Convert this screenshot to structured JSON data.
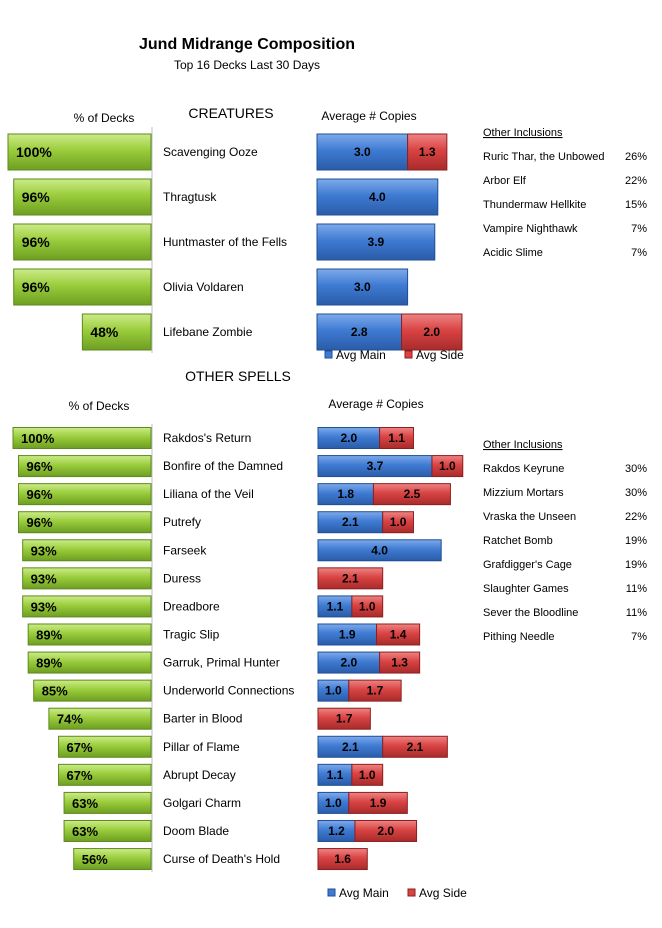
{
  "title": "Jund Midrange Composition",
  "subtitle": "Top 16 Decks Last 30 Days",
  "colors": {
    "pct_fill": "#9ACD3C",
    "pct_border": "#5E8A1E",
    "main_fill": "#3F7BD3",
    "main_border": "#1F4F97",
    "side_fill": "#D94343",
    "side_border": "#8E1F1F"
  },
  "chart_data": [
    {
      "type": "bar",
      "section_title": "CREATURES",
      "pct_header": "% of Decks",
      "copies_header": "Average # Copies",
      "categories": [
        "Scavenging Ooze",
        "Thragtusk",
        "Huntmaster of the Fells",
        "Olivia Voldaren",
        "Lifebane Zombie"
      ],
      "pct_labels": [
        "100%",
        "96%",
        "96%",
        "96%",
        "48%"
      ],
      "pct_values": [
        100,
        96,
        96,
        96,
        48
      ],
      "series": [
        {
          "name": "Avg Main",
          "values": [
            3.0,
            4.0,
            3.9,
            3.0,
            2.8
          ],
          "labels": [
            "3.0",
            "4.0",
            "3.9",
            "3.0",
            "2.8"
          ]
        },
        {
          "name": "Avg Side",
          "values": [
            1.3,
            0,
            0,
            0,
            2.0
          ],
          "labels": [
            "1.3",
            "",
            "",
            "",
            "2.0"
          ]
        }
      ],
      "legend": [
        "Avg Main",
        "Avg Side"
      ],
      "other_title": "Other Inclusions",
      "other": [
        {
          "name": "Ruric Thar, the Unbowed",
          "pct": "26%"
        },
        {
          "name": "Arbor Elf",
          "pct": "22%"
        },
        {
          "name": "Thundermaw Hellkite",
          "pct": "15%"
        },
        {
          "name": "Vampire Nighthawk",
          "pct": "7%"
        },
        {
          "name": "Acidic Slime",
          "pct": "7%"
        }
      ]
    },
    {
      "type": "bar",
      "section_title": "OTHER SPELLS",
      "pct_header": "% of Decks",
      "copies_header": "Average # Copies",
      "categories": [
        "Rakdos's Return",
        "Bonfire of the Damned",
        "Liliana of the Veil",
        "Putrefy",
        "Farseek",
        "Duress",
        "Dreadbore",
        "Tragic Slip",
        "Garruk, Primal Hunter",
        "Underworld Connections",
        "Barter in Blood",
        "Pillar of Flame",
        "Abrupt Decay",
        "Golgari Charm",
        "Doom Blade",
        "Curse of Death's Hold"
      ],
      "pct_labels": [
        "100%",
        "96%",
        "96%",
        "96%",
        "93%",
        "93%",
        "93%",
        "89%",
        "89%",
        "85%",
        "74%",
        "67%",
        "67%",
        "63%",
        "63%",
        "56%"
      ],
      "pct_values": [
        100,
        96,
        96,
        96,
        93,
        93,
        93,
        89,
        89,
        85,
        74,
        67,
        67,
        63,
        63,
        56
      ],
      "series": [
        {
          "name": "Avg Main",
          "values": [
            2.0,
            3.7,
            1.8,
            2.1,
            4.0,
            0,
            1.1,
            1.9,
            2.0,
            1.0,
            0,
            2.1,
            1.1,
            1.0,
            1.2,
            0
          ],
          "labels": [
            "2.0",
            "3.7",
            "1.8",
            "2.1",
            "4.0",
            "",
            "1.1",
            "1.9",
            "2.0",
            "1.0",
            "",
            "2.1",
            "1.1",
            "1.0",
            "1.2",
            ""
          ]
        },
        {
          "name": "Avg Side",
          "values": [
            1.1,
            1.0,
            2.5,
            1.0,
            0,
            2.1,
            1.0,
            1.4,
            1.3,
            1.7,
            1.7,
            2.1,
            1.0,
            1.9,
            2.0,
            1.6
          ],
          "labels": [
            "1.1",
            "1.0",
            "2.5",
            "1.0",
            "",
            "2.1",
            "1.0",
            "1.4",
            "1.3",
            "1.7",
            "1.7",
            "2.1",
            "1.0",
            "1.9",
            "2.0",
            "1.6"
          ]
        }
      ],
      "legend": [
        "Avg Main",
        "Avg Side"
      ],
      "other_title": "Other Inclusions",
      "other": [
        {
          "name": "Rakdos Keyrune",
          "pct": "30%"
        },
        {
          "name": "Mizzium Mortars",
          "pct": "30%"
        },
        {
          "name": "Vraska the Unseen",
          "pct": "22%"
        },
        {
          "name": "Ratchet Bomb",
          "pct": "19%"
        },
        {
          "name": "Grafdigger's Cage",
          "pct": "19%"
        },
        {
          "name": "Slaughter Games",
          "pct": "11%"
        },
        {
          "name": "Sever the Bloodline",
          "pct": "11%"
        },
        {
          "name": "Pithing Needle",
          "pct": "7%"
        }
      ]
    }
  ]
}
